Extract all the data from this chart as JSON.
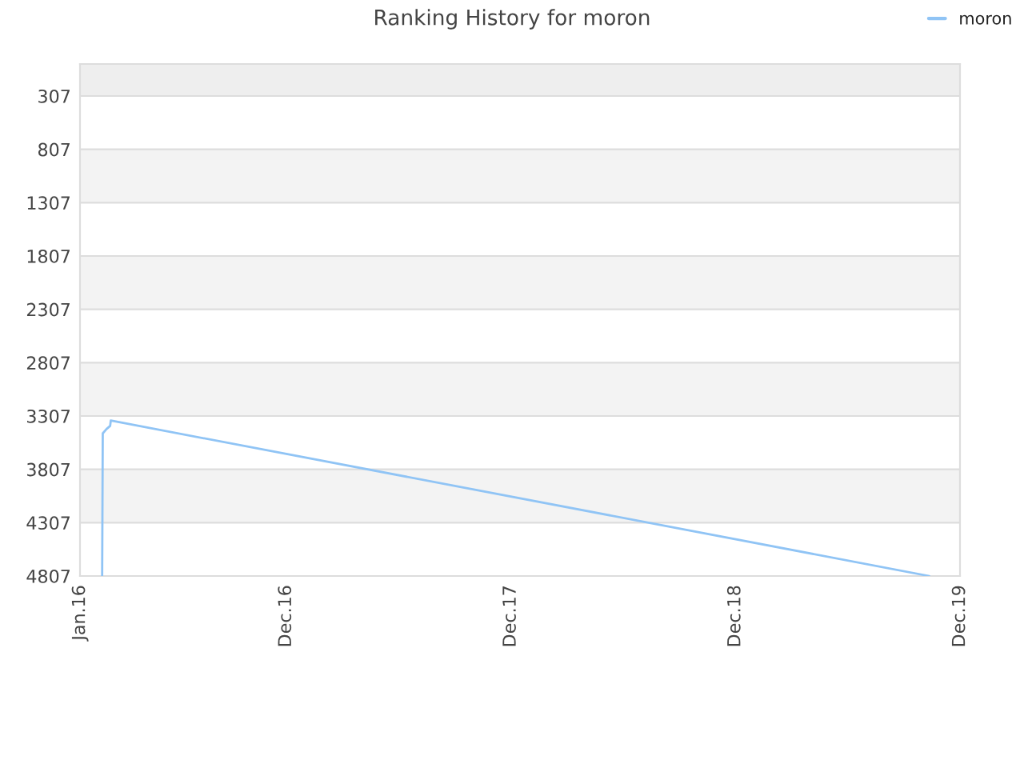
{
  "chart_data": {
    "type": "line",
    "title": "Ranking History for moron",
    "series": [
      {
        "name": "moron",
        "color": "#90c4f5",
        "x": [
          "2016-02-06",
          "2016-02-07",
          "2016-02-13",
          "2016-02-19",
          "2016-02-20",
          "2019-10-12"
        ],
        "values": [
          4807,
          3470,
          3430,
          3400,
          3350,
          4807
        ]
      }
    ],
    "xlim": [
      "2016-01-01",
      "2019-12-01"
    ],
    "xticks": [
      {
        "value": "2016-01-01",
        "label": "Jan.16"
      },
      {
        "value": "2016-12-01",
        "label": "Dec.16"
      },
      {
        "value": "2017-12-01",
        "label": "Dec.17"
      },
      {
        "value": "2018-12-01",
        "label": "Dec.18"
      },
      {
        "value": "2019-12-01",
        "label": "Dec.19"
      }
    ],
    "ylim": [
      4807,
      7
    ],
    "yticks": [
      307,
      807,
      1307,
      1807,
      2307,
      2807,
      3307,
      3807,
      4307,
      4807
    ],
    "bands": [
      {
        "axis": "y",
        "from": 7,
        "to": 307,
        "color": "#eeeeee"
      },
      {
        "axis": "y",
        "from": 807,
        "to": 1307,
        "color": "#f3f3f3"
      },
      {
        "axis": "y",
        "from": 1807,
        "to": 2307,
        "color": "#f3f3f3"
      },
      {
        "axis": "y",
        "from": 2807,
        "to": 3307,
        "color": "#f3f3f3"
      },
      {
        "axis": "y",
        "from": 3807,
        "to": 4307,
        "color": "#f3f3f3"
      }
    ],
    "grid": "y",
    "legend": "top right",
    "marker": "none",
    "line_style": "solid"
  }
}
